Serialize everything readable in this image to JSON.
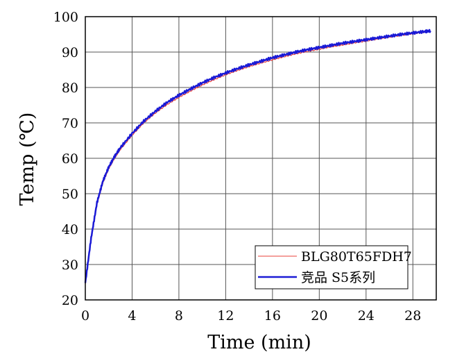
{
  "chart_data": {
    "type": "line",
    "xlabel": "Time (min)",
    "ylabel": "Temp (℃)",
    "xlim": [
      0,
      30
    ],
    "ylim": [
      20,
      100
    ],
    "x_ticks": [
      "0",
      "4",
      "8",
      "12",
      "16",
      "20",
      "24",
      "28"
    ],
    "y_ticks": [
      "20",
      "30",
      "40",
      "50",
      "60",
      "70",
      "80",
      "90",
      "100"
    ],
    "grid": true,
    "legend_position": "bottom-right",
    "series": [
      {
        "name": "BLG80T65FDH7",
        "color": "#e8403a",
        "x": [
          0,
          0.5,
          1,
          1.5,
          2,
          2.5,
          3,
          4,
          5,
          6,
          7,
          8,
          9,
          10,
          11,
          12,
          13,
          14,
          15,
          16,
          17,
          18,
          19,
          20,
          21,
          22,
          23,
          24,
          25,
          26,
          27,
          28,
          29,
          29.5
        ],
        "y": [
          24.5,
          37,
          47,
          53,
          57,
          60,
          62.5,
          66.5,
          70,
          72.8,
          75.2,
          77.2,
          79,
          80.7,
          82.2,
          83.6,
          84.8,
          85.9,
          86.9,
          87.8,
          88.7,
          89.5,
          90.2,
          90.8,
          91.5,
          92,
          92.6,
          93.1,
          93.7,
          94.2,
          94.7,
          95.2,
          95.6,
          95.8
        ]
      },
      {
        "name": "竞品 S5系列",
        "color": "#1a1ad6",
        "x": [
          0,
          0.5,
          1,
          1.5,
          2,
          2.5,
          3,
          4,
          5,
          6,
          7,
          8,
          9,
          10,
          11,
          12,
          13,
          14,
          15,
          16,
          17,
          18,
          19,
          20,
          21,
          22,
          23,
          24,
          25,
          26,
          27,
          28,
          29,
          29.5
        ],
        "y": [
          24.8,
          37.5,
          47.5,
          53.5,
          57.5,
          60.5,
          63,
          67,
          70.5,
          73.3,
          75.8,
          77.8,
          79.6,
          81.3,
          82.8,
          84.1,
          85.3,
          86.4,
          87.4,
          88.4,
          89.2,
          90,
          90.7,
          91.3,
          91.9,
          92.5,
          93,
          93.5,
          94,
          94.5,
          95,
          95.4,
          95.8,
          96
        ]
      }
    ]
  }
}
